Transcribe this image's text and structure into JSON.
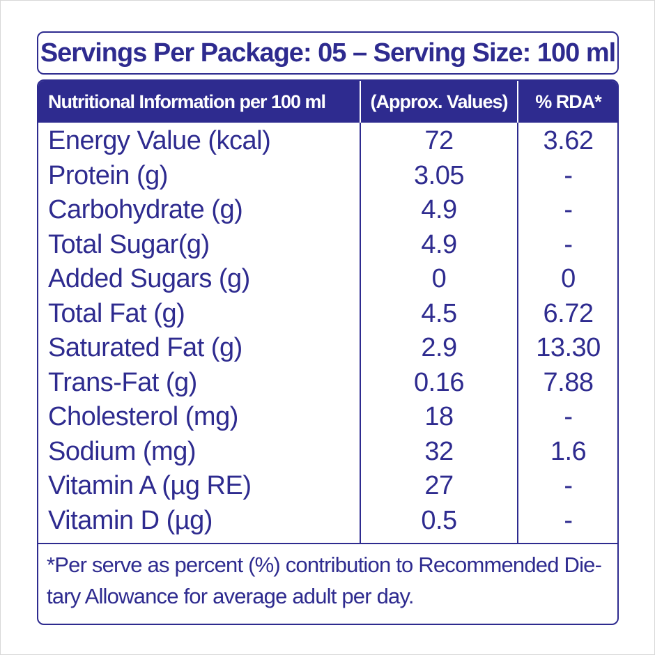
{
  "header": {
    "title": "Servings Per Package: 05 – Serving Size: 100 ml"
  },
  "table": {
    "columns": [
      "Nutritional Information per 100 ml",
      "(Approx. Values)",
      "% RDA*"
    ],
    "rows": [
      {
        "nutrient": "Energy Value (kcal)",
        "value": "72",
        "rda": "3.62"
      },
      {
        "nutrient": "Protein (g)",
        "value": "3.05",
        "rda": "-"
      },
      {
        "nutrient": "Carbohydrate (g)",
        "value": "4.9",
        "rda": "-"
      },
      {
        "nutrient": "Total Sugar(g)",
        "value": "4.9",
        "rda": "-"
      },
      {
        "nutrient": "Added Sugars (g)",
        "value": "0",
        "rda": "0"
      },
      {
        "nutrient": "Total Fat (g)",
        "value": "4.5",
        "rda": "6.72"
      },
      {
        "nutrient": "Saturated Fat (g)",
        "value": "2.9",
        "rda": "13.30"
      },
      {
        "nutrient": "Trans-Fat (g)",
        "value": "0.16",
        "rda": "7.88"
      },
      {
        "nutrient": "Cholesterol (mg)",
        "value": "18",
        "rda": "-"
      },
      {
        "nutrient": "Sodium (mg)",
        "value": "32",
        "rda": "1.6"
      },
      {
        "nutrient": "Vitamin A (µg RE)",
        "value": "27",
        "rda": "-"
      },
      {
        "nutrient": "Vitamin D (µg)",
        "value": "0.5",
        "rda": "-"
      }
    ]
  },
  "footnote": {
    "line1": "*Per serve as percent (%) contribution to Recommended Die-",
    "line2": "tary Allowance for average adult per day."
  },
  "colors": {
    "primary": "#2e2b8f",
    "background": "#ffffff"
  }
}
